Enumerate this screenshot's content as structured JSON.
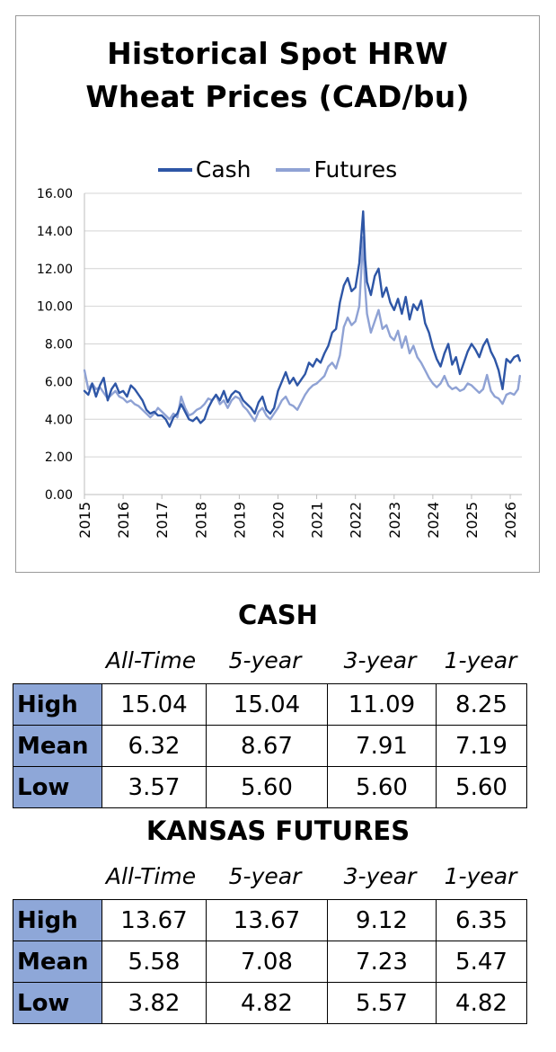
{
  "chart_data": {
    "type": "line",
    "title_line1": "Historical Spot HRW",
    "title_line2": "Wheat Prices (CAD/bu)",
    "xlabel": "",
    "ylabel": "",
    "ylim": [
      0,
      16
    ],
    "xlim": [
      2015,
      2026.3
    ],
    "y_ticks": [
      "0.00",
      "2.00",
      "4.00",
      "6.00",
      "8.00",
      "10.00",
      "12.00",
      "14.00",
      "16.00"
    ],
    "x_ticks": [
      "2015",
      "2016",
      "2017",
      "2018",
      "2019",
      "2020",
      "2021",
      "2022",
      "2023",
      "2024",
      "2025",
      "2026"
    ],
    "legend_position": "top-center",
    "grid": true,
    "series": [
      {
        "name": "Cash",
        "color": "#2e56a6",
        "points": [
          [
            2015.0,
            5.5
          ],
          [
            2015.1,
            5.3
          ],
          [
            2015.2,
            5.9
          ],
          [
            2015.3,
            5.2
          ],
          [
            2015.4,
            5.8
          ],
          [
            2015.5,
            6.2
          ],
          [
            2015.6,
            5.0
          ],
          [
            2015.7,
            5.6
          ],
          [
            2015.8,
            5.9
          ],
          [
            2015.9,
            5.4
          ],
          [
            2016.0,
            5.5
          ],
          [
            2016.1,
            5.2
          ],
          [
            2016.2,
            5.8
          ],
          [
            2016.3,
            5.6
          ],
          [
            2016.4,
            5.3
          ],
          [
            2016.5,
            5.0
          ],
          [
            2016.6,
            4.5
          ],
          [
            2016.7,
            4.3
          ],
          [
            2016.8,
            4.4
          ],
          [
            2016.9,
            4.2
          ],
          [
            2017.0,
            4.2
          ],
          [
            2017.1,
            4.0
          ],
          [
            2017.2,
            3.6
          ],
          [
            2017.3,
            4.1
          ],
          [
            2017.4,
            4.3
          ],
          [
            2017.5,
            4.8
          ],
          [
            2017.6,
            4.4
          ],
          [
            2017.7,
            4.0
          ],
          [
            2017.8,
            3.9
          ],
          [
            2017.9,
            4.1
          ],
          [
            2018.0,
            3.8
          ],
          [
            2018.1,
            4.0
          ],
          [
            2018.2,
            4.6
          ],
          [
            2018.3,
            5.0
          ],
          [
            2018.4,
            5.3
          ],
          [
            2018.5,
            5.0
          ],
          [
            2018.6,
            5.5
          ],
          [
            2018.7,
            4.9
          ],
          [
            2018.8,
            5.3
          ],
          [
            2018.9,
            5.5
          ],
          [
            2019.0,
            5.4
          ],
          [
            2019.1,
            5.0
          ],
          [
            2019.2,
            4.8
          ],
          [
            2019.3,
            4.6
          ],
          [
            2019.4,
            4.3
          ],
          [
            2019.5,
            4.9
          ],
          [
            2019.6,
            5.2
          ],
          [
            2019.7,
            4.5
          ],
          [
            2019.8,
            4.3
          ],
          [
            2019.9,
            4.6
          ],
          [
            2020.0,
            5.5
          ],
          [
            2020.1,
            6.0
          ],
          [
            2020.2,
            6.5
          ],
          [
            2020.3,
            5.9
          ],
          [
            2020.4,
            6.2
          ],
          [
            2020.5,
            5.8
          ],
          [
            2020.6,
            6.1
          ],
          [
            2020.7,
            6.4
          ],
          [
            2020.8,
            7.0
          ],
          [
            2020.9,
            6.8
          ],
          [
            2021.0,
            7.2
          ],
          [
            2021.1,
            7.0
          ],
          [
            2021.2,
            7.5
          ],
          [
            2021.3,
            7.9
          ],
          [
            2021.4,
            8.6
          ],
          [
            2021.5,
            8.8
          ],
          [
            2021.6,
            10.2
          ],
          [
            2021.7,
            11.1
          ],
          [
            2021.8,
            11.5
          ],
          [
            2021.9,
            10.8
          ],
          [
            2022.0,
            11.0
          ],
          [
            2022.1,
            12.3
          ],
          [
            2022.2,
            15.04
          ],
          [
            2022.25,
            12.5
          ],
          [
            2022.3,
            11.3
          ],
          [
            2022.4,
            10.6
          ],
          [
            2022.5,
            11.6
          ],
          [
            2022.6,
            12.0
          ],
          [
            2022.7,
            10.5
          ],
          [
            2022.8,
            11.0
          ],
          [
            2022.9,
            10.2
          ],
          [
            2023.0,
            9.8
          ],
          [
            2023.1,
            10.4
          ],
          [
            2023.2,
            9.6
          ],
          [
            2023.3,
            10.5
          ],
          [
            2023.4,
            9.3
          ],
          [
            2023.5,
            10.1
          ],
          [
            2023.6,
            9.8
          ],
          [
            2023.7,
            10.3
          ],
          [
            2023.8,
            9.1
          ],
          [
            2023.9,
            8.6
          ],
          [
            2024.0,
            7.8
          ],
          [
            2024.1,
            7.2
          ],
          [
            2024.2,
            6.8
          ],
          [
            2024.3,
            7.5
          ],
          [
            2024.4,
            8.0
          ],
          [
            2024.5,
            6.9
          ],
          [
            2024.6,
            7.3
          ],
          [
            2024.7,
            6.4
          ],
          [
            2024.8,
            7.0
          ],
          [
            2024.9,
            7.6
          ],
          [
            2025.0,
            8.0
          ],
          [
            2025.1,
            7.7
          ],
          [
            2025.2,
            7.3
          ],
          [
            2025.3,
            7.9
          ],
          [
            2025.4,
            8.25
          ],
          [
            2025.5,
            7.6
          ],
          [
            2025.6,
            7.2
          ],
          [
            2025.7,
            6.6
          ],
          [
            2025.8,
            5.6
          ],
          [
            2025.9,
            7.2
          ],
          [
            2026.0,
            7.0
          ],
          [
            2026.1,
            7.3
          ],
          [
            2026.2,
            7.4
          ],
          [
            2026.25,
            7.1
          ]
        ]
      },
      {
        "name": "Futures",
        "color": "#8fa2d4",
        "points": [
          [
            2015.0,
            6.6
          ],
          [
            2015.1,
            5.6
          ],
          [
            2015.2,
            5.9
          ],
          [
            2015.3,
            5.6
          ],
          [
            2015.4,
            5.7
          ],
          [
            2015.5,
            5.4
          ],
          [
            2015.6,
            5.1
          ],
          [
            2015.7,
            5.3
          ],
          [
            2015.8,
            5.5
          ],
          [
            2015.9,
            5.2
          ],
          [
            2016.0,
            5.1
          ],
          [
            2016.1,
            4.9
          ],
          [
            2016.2,
            5.0
          ],
          [
            2016.3,
            4.8
          ],
          [
            2016.4,
            4.7
          ],
          [
            2016.5,
            4.5
          ],
          [
            2016.6,
            4.3
          ],
          [
            2016.7,
            4.1
          ],
          [
            2016.8,
            4.3
          ],
          [
            2016.9,
            4.6
          ],
          [
            2017.0,
            4.4
          ],
          [
            2017.1,
            4.2
          ],
          [
            2017.2,
            4.0
          ],
          [
            2017.3,
            4.3
          ],
          [
            2017.4,
            4.1
          ],
          [
            2017.5,
            5.2
          ],
          [
            2017.6,
            4.6
          ],
          [
            2017.7,
            4.2
          ],
          [
            2017.8,
            4.3
          ],
          [
            2017.9,
            4.5
          ],
          [
            2018.0,
            4.6
          ],
          [
            2018.1,
            4.8
          ],
          [
            2018.2,
            5.1
          ],
          [
            2018.3,
            5.0
          ],
          [
            2018.4,
            5.3
          ],
          [
            2018.5,
            4.8
          ],
          [
            2018.6,
            5.0
          ],
          [
            2018.7,
            4.6
          ],
          [
            2018.8,
            5.0
          ],
          [
            2018.9,
            5.2
          ],
          [
            2019.0,
            5.1
          ],
          [
            2019.1,
            4.7
          ],
          [
            2019.2,
            4.5
          ],
          [
            2019.3,
            4.2
          ],
          [
            2019.4,
            3.9
          ],
          [
            2019.5,
            4.4
          ],
          [
            2019.6,
            4.6
          ],
          [
            2019.7,
            4.2
          ],
          [
            2019.8,
            4.0
          ],
          [
            2019.9,
            4.3
          ],
          [
            2020.0,
            4.6
          ],
          [
            2020.1,
            5.0
          ],
          [
            2020.2,
            5.2
          ],
          [
            2020.3,
            4.8
          ],
          [
            2020.4,
            4.7
          ],
          [
            2020.5,
            4.5
          ],
          [
            2020.6,
            4.9
          ],
          [
            2020.7,
            5.3
          ],
          [
            2020.8,
            5.6
          ],
          [
            2020.9,
            5.8
          ],
          [
            2021.0,
            5.9
          ],
          [
            2021.1,
            6.1
          ],
          [
            2021.2,
            6.3
          ],
          [
            2021.3,
            6.8
          ],
          [
            2021.4,
            7.0
          ],
          [
            2021.5,
            6.7
          ],
          [
            2021.6,
            7.4
          ],
          [
            2021.7,
            8.9
          ],
          [
            2021.8,
            9.4
          ],
          [
            2021.9,
            9.0
          ],
          [
            2022.0,
            9.2
          ],
          [
            2022.1,
            10.0
          ],
          [
            2022.2,
            13.67
          ],
          [
            2022.25,
            11.0
          ],
          [
            2022.3,
            9.6
          ],
          [
            2022.4,
            8.6
          ],
          [
            2022.5,
            9.2
          ],
          [
            2022.6,
            9.8
          ],
          [
            2022.7,
            8.8
          ],
          [
            2022.8,
            9.0
          ],
          [
            2022.9,
            8.4
          ],
          [
            2023.0,
            8.2
          ],
          [
            2023.1,
            8.7
          ],
          [
            2023.2,
            7.8
          ],
          [
            2023.3,
            8.4
          ],
          [
            2023.4,
            7.5
          ],
          [
            2023.5,
            7.9
          ],
          [
            2023.6,
            7.3
          ],
          [
            2023.7,
            7.0
          ],
          [
            2023.8,
            6.6
          ],
          [
            2023.9,
            6.2
          ],
          [
            2024.0,
            5.9
          ],
          [
            2024.1,
            5.7
          ],
          [
            2024.2,
            5.9
          ],
          [
            2024.3,
            6.3
          ],
          [
            2024.4,
            5.8
          ],
          [
            2024.5,
            5.6
          ],
          [
            2024.6,
            5.7
          ],
          [
            2024.7,
            5.5
          ],
          [
            2024.8,
            5.6
          ],
          [
            2024.9,
            5.9
          ],
          [
            2025.0,
            5.8
          ],
          [
            2025.1,
            5.6
          ],
          [
            2025.2,
            5.4
          ],
          [
            2025.3,
            5.6
          ],
          [
            2025.4,
            6.35
          ],
          [
            2025.5,
            5.5
          ],
          [
            2025.6,
            5.2
          ],
          [
            2025.7,
            5.1
          ],
          [
            2025.8,
            4.82
          ],
          [
            2025.9,
            5.3
          ],
          [
            2026.0,
            5.4
          ],
          [
            2026.1,
            5.3
          ],
          [
            2026.2,
            5.6
          ],
          [
            2026.25,
            6.3
          ]
        ]
      }
    ]
  },
  "tables": [
    {
      "title": "CASH",
      "columns": [
        "All-Time",
        "5-year",
        "3-year",
        "1-year"
      ],
      "rows": [
        {
          "label": "High",
          "values": [
            "15.04",
            "15.04",
            "11.09",
            "8.25"
          ]
        },
        {
          "label": "Mean",
          "values": [
            "6.32",
            "8.67",
            "7.91",
            "7.19"
          ]
        },
        {
          "label": "Low",
          "values": [
            "3.57",
            "5.60",
            "5.60",
            "5.60"
          ]
        }
      ]
    },
    {
      "title": "KANSAS FUTURES",
      "columns": [
        "All-Time",
        "5-year",
        "3-year",
        "1-year"
      ],
      "rows": [
        {
          "label": "High",
          "values": [
            "13.67",
            "13.67",
            "9.12",
            "6.35"
          ]
        },
        {
          "label": "Mean",
          "values": [
            "5.58",
            "7.08",
            "7.23",
            "5.47"
          ]
        },
        {
          "label": "Low",
          "values": [
            "3.82",
            "4.82",
            "5.57",
            "4.82"
          ]
        }
      ]
    }
  ]
}
